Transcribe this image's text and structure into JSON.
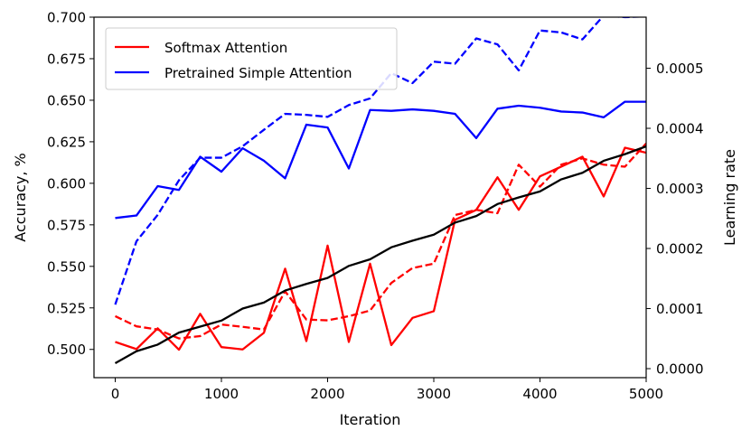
{
  "chart_data": {
    "type": "line",
    "title": "",
    "xlabel": "Iteration",
    "ylabel_left": "Accuracy, %",
    "ylabel_right": "Learning rate",
    "xlim": [
      -200,
      5000
    ],
    "ylim_left": [
      0.483,
      0.7
    ],
    "ylim_right": [
      -1.5e-05,
      0.000585
    ],
    "grid": false,
    "legend_position": "upper-left",
    "x_ticks": [
      0,
      1000,
      2000,
      3000,
      4000,
      5000
    ],
    "x_tick_labels": [
      "0",
      "1000",
      "2000",
      "3000",
      "4000",
      "5000"
    ],
    "y_left_ticks": [
      0.5,
      0.525,
      0.55,
      0.575,
      0.6,
      0.625,
      0.65,
      0.675,
      0.7
    ],
    "y_left_tick_labels": [
      "0.500",
      "0.525",
      "0.550",
      "0.575",
      "0.600",
      "0.625",
      "0.650",
      "0.675",
      "0.700"
    ],
    "y_right_ticks": [
      0,
      0.0001,
      0.0002,
      0.0003,
      0.0004,
      0.0005
    ],
    "y_right_tick_labels": [
      "0.0000",
      "0.0001",
      "0.0002",
      "0.0003",
      "0.0004",
      "0.0005"
    ],
    "x": [
      0,
      200,
      400,
      600,
      800,
      1000,
      1200,
      1400,
      1600,
      1800,
      2000,
      2200,
      2400,
      2600,
      2800,
      3000,
      3200,
      3400,
      3600,
      3800,
      4000,
      4200,
      4400,
      4600,
      4800,
      5000
    ],
    "series": [
      {
        "name": "Softmax Attention",
        "axis": "left",
        "color": "#ff0000",
        "style": "solid",
        "values": [
          0.5045,
          0.5002,
          0.5127,
          0.4998,
          0.5214,
          0.5014,
          0.5,
          0.51,
          0.5486,
          0.505,
          0.5625,
          0.5045,
          0.5516,
          0.5026,
          0.519,
          0.523,
          0.578,
          0.584,
          0.6036,
          0.584,
          0.6042,
          0.61,
          0.616,
          0.5921,
          0.6214,
          0.6184
        ]
      },
      {
        "axis": "left",
        "color": "#ff0000",
        "style": "dashed",
        "values": [
          0.52,
          0.5139,
          0.512,
          0.5066,
          0.508,
          0.515,
          0.5136,
          0.512,
          0.535,
          0.518,
          0.5175,
          0.52,
          0.5234,
          0.54,
          0.549,
          0.5516,
          0.5809,
          0.584,
          0.582,
          0.6112,
          0.598,
          0.6112,
          0.615,
          0.6112,
          0.61,
          0.624
        ]
      },
      {
        "name": "Pretrained Simple Attention",
        "axis": "left",
        "color": "#0000ff",
        "style": "solid",
        "values": [
          0.5791,
          0.5806,
          0.5983,
          0.596,
          0.616,
          0.607,
          0.6211,
          0.6136,
          0.603,
          0.6353,
          0.6336,
          0.6089,
          0.6441,
          0.6436,
          0.6445,
          0.6436,
          0.6418,
          0.6272,
          0.6449,
          0.6467,
          0.6455,
          0.6432,
          0.6426,
          0.6397,
          0.6491,
          0.6491
        ]
      },
      {
        "axis": "left",
        "color": "#0000ff",
        "style": "dashed",
        "values": [
          0.527,
          0.5651,
          0.581,
          0.6018,
          0.6154,
          0.6154,
          0.6223,
          0.6322,
          0.6418,
          0.6412,
          0.64,
          0.6471,
          0.6511,
          0.6663,
          0.6603,
          0.6732,
          0.672,
          0.6872,
          0.6836,
          0.668,
          0.692,
          0.6908,
          0.6866,
          0.701,
          0.7,
          0.7005
        ]
      },
      {
        "axis": "right",
        "color": "#000000",
        "style": "solid",
        "values": [
          9e-06,
          2.9e-05,
          4e-05,
          6e-05,
          7e-05,
          8e-05,
          0.0001,
          0.00011,
          0.00013,
          0.000141,
          0.000151,
          0.000171,
          0.000182,
          0.000202,
          0.000213,
          0.000223,
          0.000243,
          0.000254,
          0.000274,
          0.000285,
          0.000295,
          0.000315,
          0.000326,
          0.000346,
          0.000357,
          0.00037
        ]
      }
    ]
  }
}
